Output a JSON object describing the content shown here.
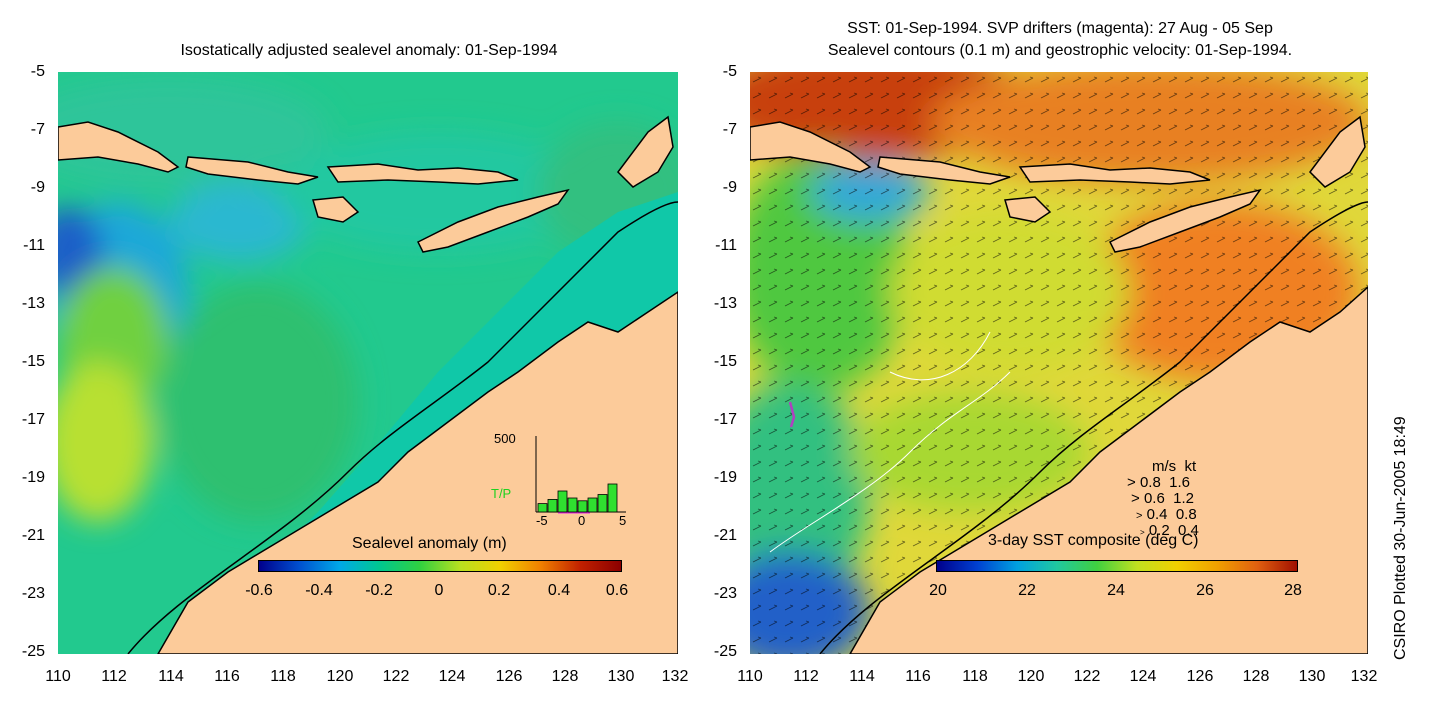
{
  "left_panel": {
    "title": "Isostatically adjusted sealevel anomaly: 01-Sep-1994",
    "colorbar": {
      "title": "Sealevel anomaly (m)",
      "labels": [
        "-0.6",
        "-0.4",
        "-0.2",
        "0",
        "0.2",
        "0.4",
        "0.6"
      ],
      "range": [
        -0.6,
        0.6
      ]
    },
    "histogram": {
      "y_label": "500",
      "series_label": "T/P",
      "x_labels": [
        "-5",
        "0",
        "5"
      ],
      "bars": [
        0.12,
        0.18,
        0.3,
        0.2,
        0.16,
        0.2,
        0.25,
        0.4
      ]
    }
  },
  "right_panel": {
    "title_line1": "SST: 01-Sep-1994. SVP drifters (magenta): 27 Aug - 05 Sep",
    "title_line2": "Sealevel contours (0.1 m) and geostrophic velocity: 01-Sep-1994.",
    "colorbar": {
      "title": "3-day SST composite (deg C)",
      "labels": [
        "20",
        "22",
        "24",
        "26",
        "28"
      ],
      "range": [
        20,
        28
      ]
    },
    "velocity_legend": {
      "header_ms": "m/s",
      "header_kt": "kt",
      "rows": [
        {
          "ms": "0.8",
          "kt": "1.6"
        },
        {
          "ms": "0.6",
          "kt": "1.2"
        },
        {
          "ms": "0.4",
          "kt": "0.8"
        },
        {
          "ms": "0.2",
          "kt": "0.4"
        }
      ]
    }
  },
  "axes": {
    "x_ticks": [
      "110",
      "112",
      "114",
      "116",
      "118",
      "120",
      "122",
      "124",
      "126",
      "128",
      "130",
      "132"
    ],
    "y_ticks": [
      "-5",
      "-7",
      "-9",
      "-11",
      "-13",
      "-15",
      "-17",
      "-19",
      "-21",
      "-23",
      "-25"
    ],
    "lon_range": [
      110,
      132
    ],
    "lat_range": [
      -25,
      -5
    ]
  },
  "credit": "CSIRO Plotted 30-Jun-2005 18:49",
  "colors": {
    "land": "#fccb9a",
    "ocean_left": "#1fd0a8",
    "ocean_right": "#e6d23a",
    "coast": "#000000",
    "drifter": "#b040c0"
  }
}
